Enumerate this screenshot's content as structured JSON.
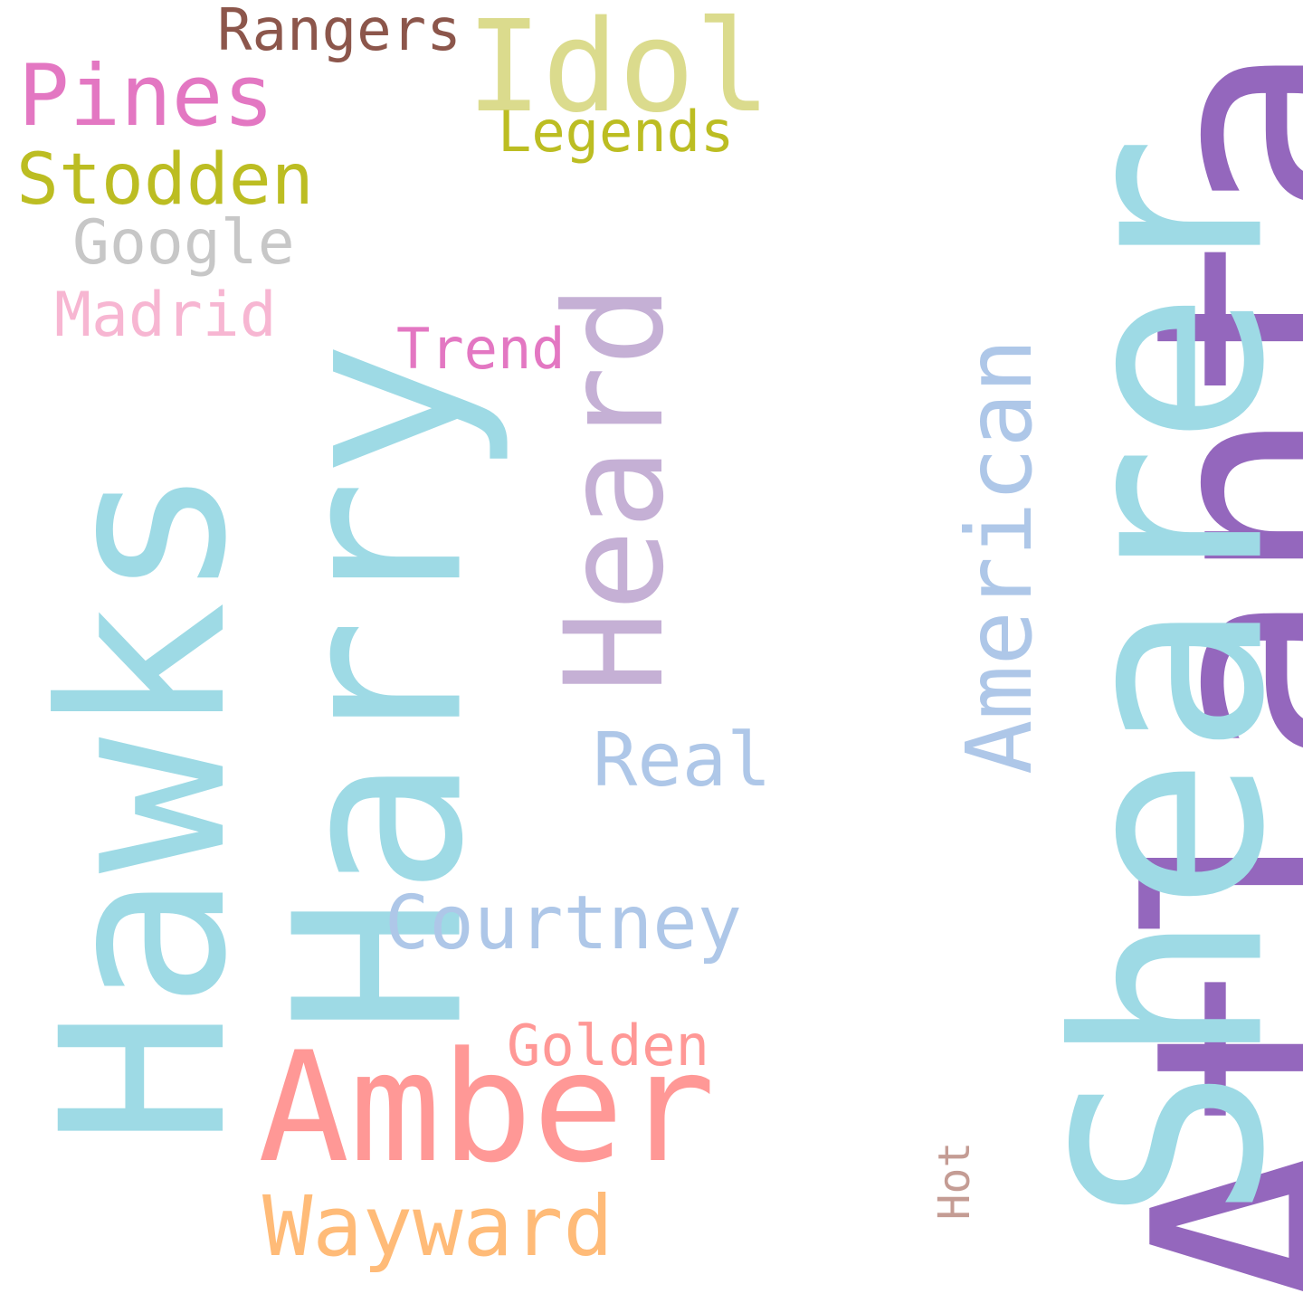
{
  "words": {
    "atlanta": {
      "text": "Atlanta",
      "color": "#9467bd"
    },
    "shearer": {
      "text": "Shearer",
      "color": "#9edae5"
    },
    "hawks": {
      "text": "Hawks",
      "color": "#9edae5"
    },
    "harry": {
      "text": "Harry",
      "color": "#9edae5"
    },
    "amber": {
      "text": "Amber",
      "color": "#ff9896"
    },
    "idol": {
      "text": "Idol",
      "color": "#dbdb8d"
    },
    "heard": {
      "text": "Heard",
      "color": "#c5b0d5"
    },
    "american": {
      "text": "American",
      "color": "#aec7e8"
    },
    "rangers": {
      "text": "Rangers",
      "color": "#8c564b"
    },
    "pines": {
      "text": "Pines",
      "color": "#e377c2"
    },
    "legends": {
      "text": "Legends",
      "color": "#bcbd22"
    },
    "stodden": {
      "text": "Stodden",
      "color": "#bcbd22"
    },
    "google": {
      "text": "Google",
      "color": "#c7c7c7"
    },
    "madrid": {
      "text": "Madrid",
      "color": "#f7b6d2"
    },
    "trend": {
      "text": "Trend",
      "color": "#e377c2"
    },
    "real": {
      "text": "Real",
      "color": "#aec7e8"
    },
    "courtney": {
      "text": "Courtney",
      "color": "#aec7e8"
    },
    "golden": {
      "text": "Golden",
      "color": "#ff9896"
    },
    "wayward": {
      "text": "Wayward",
      "color": "#ffbb78"
    },
    "hot": {
      "text": "Hot",
      "color": "#c49c94"
    }
  }
}
